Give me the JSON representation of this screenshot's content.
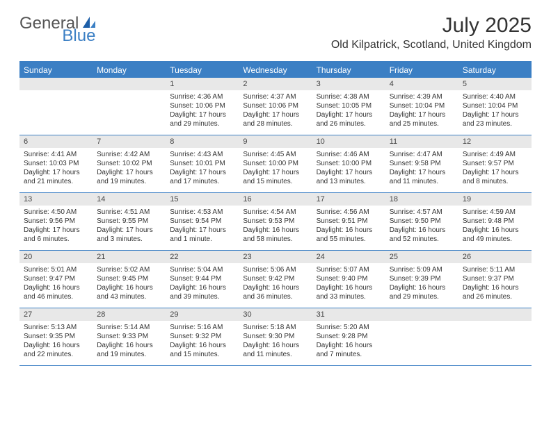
{
  "brand": {
    "part1": "General",
    "part2": "Blue"
  },
  "title": "July 2025",
  "location": "Old Kilpatrick, Scotland, United Kingdom",
  "colors": {
    "accent": "#3b7fc4",
    "header_bg": "#3b7fc4",
    "daynum_bg": "#e8e8e8",
    "text": "#333333",
    "background": "#ffffff"
  },
  "weekdays": [
    "Sunday",
    "Monday",
    "Tuesday",
    "Wednesday",
    "Thursday",
    "Friday",
    "Saturday"
  ],
  "weeks": [
    [
      null,
      null,
      {
        "n": "1",
        "sunrise": "Sunrise: 4:36 AM",
        "sunset": "Sunset: 10:06 PM",
        "daylight": "Daylight: 17 hours and 29 minutes."
      },
      {
        "n": "2",
        "sunrise": "Sunrise: 4:37 AM",
        "sunset": "Sunset: 10:06 PM",
        "daylight": "Daylight: 17 hours and 28 minutes."
      },
      {
        "n": "3",
        "sunrise": "Sunrise: 4:38 AM",
        "sunset": "Sunset: 10:05 PM",
        "daylight": "Daylight: 17 hours and 26 minutes."
      },
      {
        "n": "4",
        "sunrise": "Sunrise: 4:39 AM",
        "sunset": "Sunset: 10:04 PM",
        "daylight": "Daylight: 17 hours and 25 minutes."
      },
      {
        "n": "5",
        "sunrise": "Sunrise: 4:40 AM",
        "sunset": "Sunset: 10:04 PM",
        "daylight": "Daylight: 17 hours and 23 minutes."
      }
    ],
    [
      {
        "n": "6",
        "sunrise": "Sunrise: 4:41 AM",
        "sunset": "Sunset: 10:03 PM",
        "daylight": "Daylight: 17 hours and 21 minutes."
      },
      {
        "n": "7",
        "sunrise": "Sunrise: 4:42 AM",
        "sunset": "Sunset: 10:02 PM",
        "daylight": "Daylight: 17 hours and 19 minutes."
      },
      {
        "n": "8",
        "sunrise": "Sunrise: 4:43 AM",
        "sunset": "Sunset: 10:01 PM",
        "daylight": "Daylight: 17 hours and 17 minutes."
      },
      {
        "n": "9",
        "sunrise": "Sunrise: 4:45 AM",
        "sunset": "Sunset: 10:00 PM",
        "daylight": "Daylight: 17 hours and 15 minutes."
      },
      {
        "n": "10",
        "sunrise": "Sunrise: 4:46 AM",
        "sunset": "Sunset: 10:00 PM",
        "daylight": "Daylight: 17 hours and 13 minutes."
      },
      {
        "n": "11",
        "sunrise": "Sunrise: 4:47 AM",
        "sunset": "Sunset: 9:58 PM",
        "daylight": "Daylight: 17 hours and 11 minutes."
      },
      {
        "n": "12",
        "sunrise": "Sunrise: 4:49 AM",
        "sunset": "Sunset: 9:57 PM",
        "daylight": "Daylight: 17 hours and 8 minutes."
      }
    ],
    [
      {
        "n": "13",
        "sunrise": "Sunrise: 4:50 AM",
        "sunset": "Sunset: 9:56 PM",
        "daylight": "Daylight: 17 hours and 6 minutes."
      },
      {
        "n": "14",
        "sunrise": "Sunrise: 4:51 AM",
        "sunset": "Sunset: 9:55 PM",
        "daylight": "Daylight: 17 hours and 3 minutes."
      },
      {
        "n": "15",
        "sunrise": "Sunrise: 4:53 AM",
        "sunset": "Sunset: 9:54 PM",
        "daylight": "Daylight: 17 hours and 1 minute."
      },
      {
        "n": "16",
        "sunrise": "Sunrise: 4:54 AM",
        "sunset": "Sunset: 9:53 PM",
        "daylight": "Daylight: 16 hours and 58 minutes."
      },
      {
        "n": "17",
        "sunrise": "Sunrise: 4:56 AM",
        "sunset": "Sunset: 9:51 PM",
        "daylight": "Daylight: 16 hours and 55 minutes."
      },
      {
        "n": "18",
        "sunrise": "Sunrise: 4:57 AM",
        "sunset": "Sunset: 9:50 PM",
        "daylight": "Daylight: 16 hours and 52 minutes."
      },
      {
        "n": "19",
        "sunrise": "Sunrise: 4:59 AM",
        "sunset": "Sunset: 9:48 PM",
        "daylight": "Daylight: 16 hours and 49 minutes."
      }
    ],
    [
      {
        "n": "20",
        "sunrise": "Sunrise: 5:01 AM",
        "sunset": "Sunset: 9:47 PM",
        "daylight": "Daylight: 16 hours and 46 minutes."
      },
      {
        "n": "21",
        "sunrise": "Sunrise: 5:02 AM",
        "sunset": "Sunset: 9:45 PM",
        "daylight": "Daylight: 16 hours and 43 minutes."
      },
      {
        "n": "22",
        "sunrise": "Sunrise: 5:04 AM",
        "sunset": "Sunset: 9:44 PM",
        "daylight": "Daylight: 16 hours and 39 minutes."
      },
      {
        "n": "23",
        "sunrise": "Sunrise: 5:06 AM",
        "sunset": "Sunset: 9:42 PM",
        "daylight": "Daylight: 16 hours and 36 minutes."
      },
      {
        "n": "24",
        "sunrise": "Sunrise: 5:07 AM",
        "sunset": "Sunset: 9:40 PM",
        "daylight": "Daylight: 16 hours and 33 minutes."
      },
      {
        "n": "25",
        "sunrise": "Sunrise: 5:09 AM",
        "sunset": "Sunset: 9:39 PM",
        "daylight": "Daylight: 16 hours and 29 minutes."
      },
      {
        "n": "26",
        "sunrise": "Sunrise: 5:11 AM",
        "sunset": "Sunset: 9:37 PM",
        "daylight": "Daylight: 16 hours and 26 minutes."
      }
    ],
    [
      {
        "n": "27",
        "sunrise": "Sunrise: 5:13 AM",
        "sunset": "Sunset: 9:35 PM",
        "daylight": "Daylight: 16 hours and 22 minutes."
      },
      {
        "n": "28",
        "sunrise": "Sunrise: 5:14 AM",
        "sunset": "Sunset: 9:33 PM",
        "daylight": "Daylight: 16 hours and 19 minutes."
      },
      {
        "n": "29",
        "sunrise": "Sunrise: 5:16 AM",
        "sunset": "Sunset: 9:32 PM",
        "daylight": "Daylight: 16 hours and 15 minutes."
      },
      {
        "n": "30",
        "sunrise": "Sunrise: 5:18 AM",
        "sunset": "Sunset: 9:30 PM",
        "daylight": "Daylight: 16 hours and 11 minutes."
      },
      {
        "n": "31",
        "sunrise": "Sunrise: 5:20 AM",
        "sunset": "Sunset: 9:28 PM",
        "daylight": "Daylight: 16 hours and 7 minutes."
      },
      null,
      null
    ]
  ]
}
